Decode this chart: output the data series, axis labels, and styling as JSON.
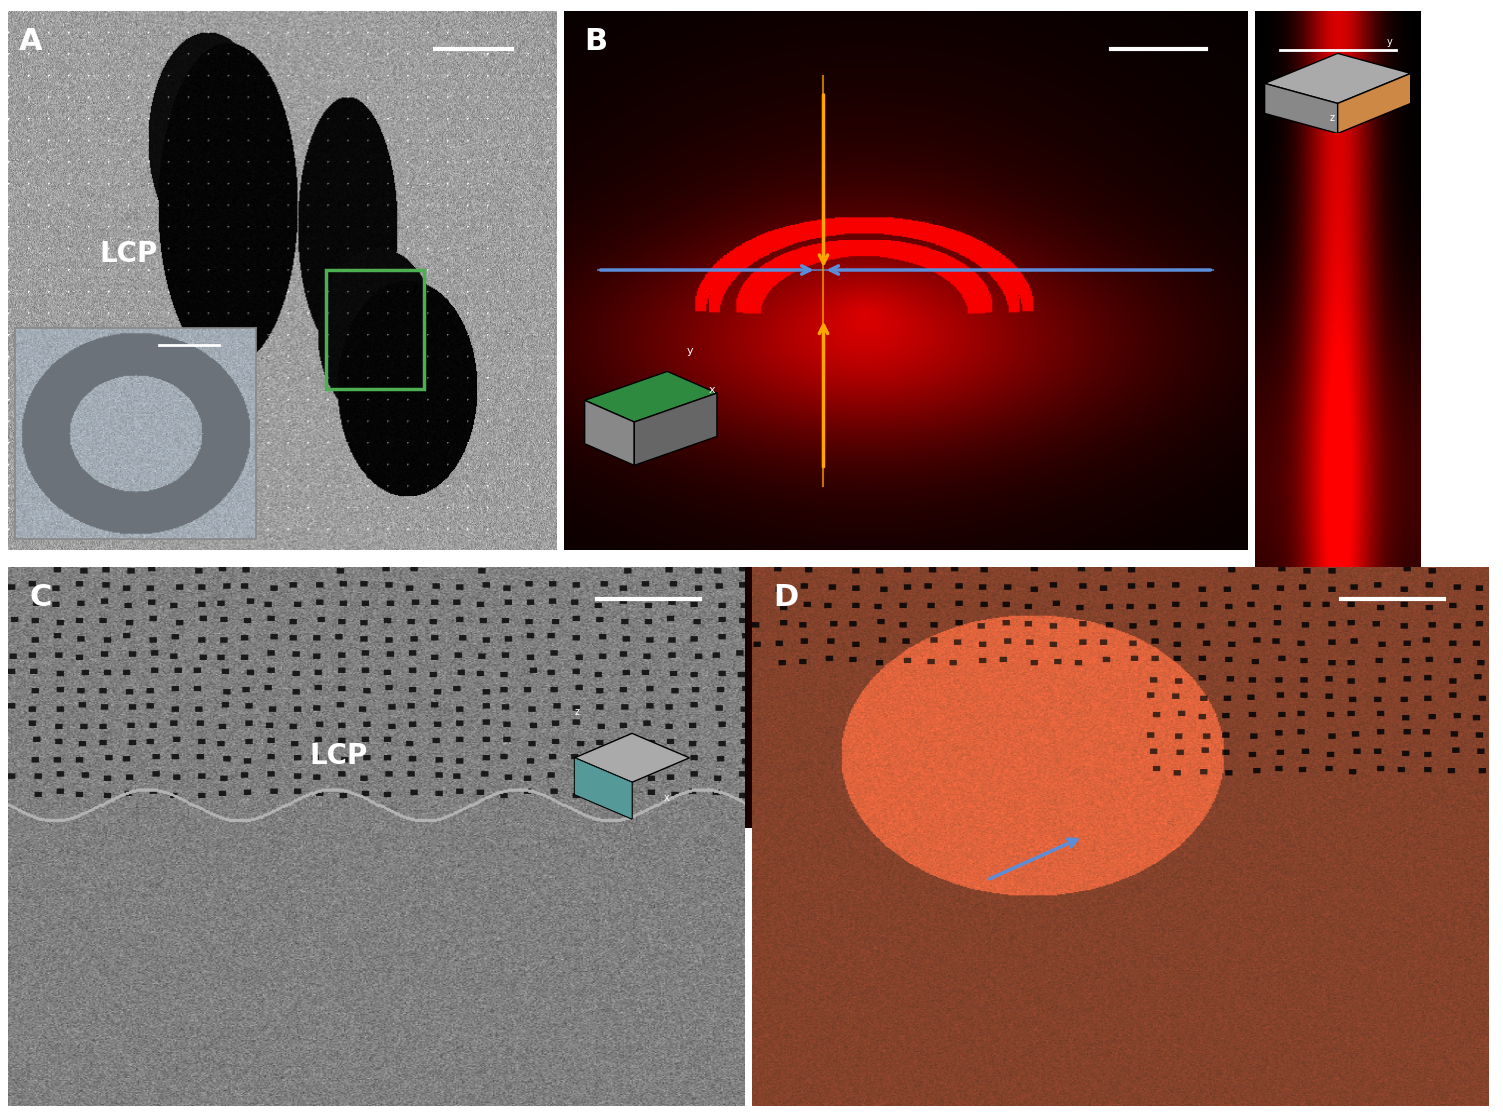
{
  "figure_width": 15.03,
  "figure_height": 11.12,
  "bg_color": "#ffffff",
  "panel_bg": "#000000",
  "label_A": "A",
  "label_B": "B",
  "label_C": "C",
  "label_D": "D",
  "label_LCP_A": "LCP",
  "label_LCP_C": "LCP",
  "label_color": "#ffffff",
  "border_green": "#4caf50",
  "border_yellow": "#ffc107",
  "border_cyan": "#00bcd4",
  "arrow_blue": "#5b8dd9",
  "arrow_orange": "#ffa500",
  "scale_bar_color": "#ffffff"
}
